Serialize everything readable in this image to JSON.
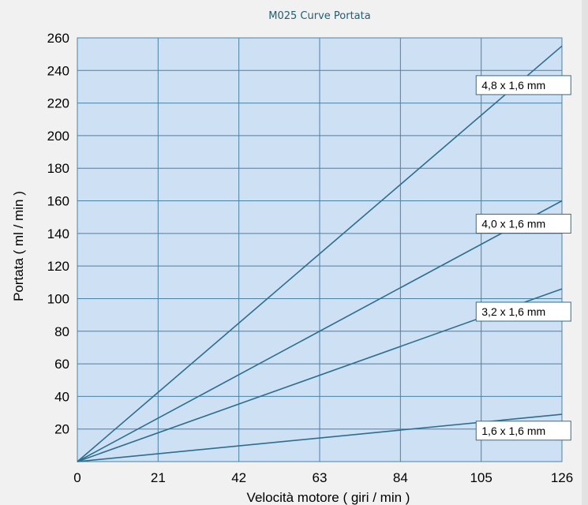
{
  "chart_data": {
    "type": "line",
    "title": "M025 Curve Portata",
    "xlabel": "Velocità motore ( giri / min )",
    "ylabel": "Portata ( ml / min )",
    "xlim": [
      0,
      126
    ],
    "ylim": [
      0,
      260
    ],
    "xticks": [
      "0",
      "21",
      "42",
      "63",
      "84",
      "105",
      "126"
    ],
    "yticks": [
      "20",
      "40",
      "60",
      "80",
      "100",
      "120",
      "140",
      "160",
      "180",
      "200",
      "220",
      "240",
      "260"
    ],
    "grid": true,
    "colors": {
      "plot_bg": "#cde0f4",
      "line": "#2d6e8e",
      "grid": "#4a82a6",
      "title": "#1f5e73"
    },
    "series": [
      {
        "name": "4,8 x 1,6 mm",
        "x": [
          0,
          126
        ],
        "y": [
          0,
          255
        ]
      },
      {
        "name": "4,0 x 1,6 mm",
        "x": [
          0,
          126
        ],
        "y": [
          0,
          160
        ]
      },
      {
        "name": "3,2 x 1,6 mm",
        "x": [
          0,
          126
        ],
        "y": [
          0,
          106
        ]
      },
      {
        "name": "1,6 x 1,6 mm",
        "x": [
          0,
          126
        ],
        "y": [
          0,
          29
        ]
      }
    ],
    "label_positions_y": [
      231,
      146,
      92,
      19
    ],
    "label_position_x": 116
  }
}
